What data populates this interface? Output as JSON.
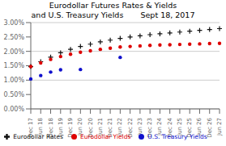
{
  "chart_data": {
    "type": "scatter",
    "title": "Eurodollar Futures Rates & Yields",
    "subtitle": "and U.S. Treasury Yields       Sept 18, 2017",
    "categories": [
      "Dec 17",
      "Jun 18",
      "Dec 18",
      "Jun 19",
      "Dec 19",
      "Jun 20",
      "Dec 20",
      "Jun 21",
      "Dec 21",
      "Jun 22",
      "Dec 22",
      "Jun 23",
      "Dec 23",
      "Jun 24",
      "Dec 24",
      "Jun 25",
      "Dec 25",
      "Jun 26",
      "Dec 26",
      "Jun 27"
    ],
    "series": [
      {
        "name": "Eurodollar Rates",
        "color": "#111111",
        "marker": "plus",
        "values": [
          1.47,
          1.64,
          1.8,
          1.95,
          2.07,
          2.17,
          2.25,
          2.33,
          2.39,
          2.45,
          2.5,
          2.54,
          2.58,
          2.61,
          2.64,
          2.67,
          2.7,
          2.73,
          2.76,
          2.79
        ]
      },
      {
        "name": "Eurodollar Yields",
        "color": "#dd0000",
        "marker": "circle",
        "values": [
          1.47,
          1.6,
          1.72,
          1.82,
          1.9,
          1.97,
          2.02,
          2.07,
          2.11,
          2.15,
          2.17,
          2.19,
          2.21,
          2.22,
          2.23,
          2.24,
          2.25,
          2.26,
          2.27,
          2.28
        ]
      },
      {
        "name": "U.S. Treasury Yields",
        "color": "#1111cc",
        "marker": "circle",
        "values": [
          1.04,
          1.16,
          1.28,
          1.36,
          null,
          1.37,
          null,
          null,
          null,
          1.79,
          null,
          null,
          null,
          null,
          null,
          null,
          null,
          null,
          null,
          null
        ]
      }
    ],
    "ylim": [
      0,
      3.0
    ],
    "yticks": [
      {
        "value": 0,
        "label": "0.00%"
      },
      {
        "value": 0.5,
        "label": "0.50%"
      },
      {
        "value": 1.0,
        "label": "1.00%"
      },
      {
        "value": 1.5,
        "label": "1.50%"
      },
      {
        "value": 2.0,
        "label": "2.00%"
      },
      {
        "value": 2.5,
        "label": "2.50%"
      },
      {
        "value": 3.0,
        "label": "3.00%"
      }
    ],
    "grid": true,
    "legend": "bottom"
  }
}
